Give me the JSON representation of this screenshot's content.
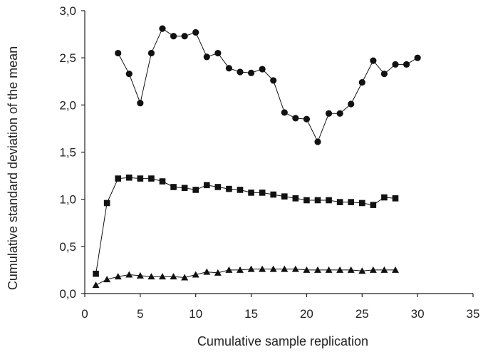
{
  "chart_data": {
    "type": "scatter",
    "xlabel": "Cumulative sample replication",
    "ylabel": "Cumulative standard deviation of the mean",
    "xlim": [
      0,
      35
    ],
    "ylim": [
      0,
      3.0
    ],
    "x_ticks": [
      "0",
      "5",
      "10",
      "15",
      "20",
      "25",
      "30",
      "35"
    ],
    "y_ticks": [
      "0,0",
      "0,5",
      "1,0",
      "1,5",
      "2,0",
      "2,5",
      "3,0"
    ],
    "grid": false,
    "legend": "none",
    "series": [
      {
        "marker": "circle",
        "color": "#111111",
        "x": [
          3,
          4,
          5,
          6,
          7,
          8,
          9,
          10,
          11,
          12,
          13,
          14,
          15,
          16,
          17,
          18,
          19,
          20,
          21,
          22,
          23,
          24,
          25,
          26,
          27,
          28,
          29,
          30
        ],
        "values": [
          2.55,
          2.33,
          2.02,
          2.55,
          2.81,
          2.73,
          2.73,
          2.77,
          2.51,
          2.55,
          2.39,
          2.35,
          2.34,
          2.38,
          2.26,
          1.92,
          1.86,
          1.85,
          1.61,
          1.91,
          1.91,
          2.01,
          2.24,
          2.47,
          2.33,
          2.43,
          2.43,
          2.5
        ]
      },
      {
        "marker": "square",
        "color": "#111111",
        "x": [
          1,
          2,
          3,
          4,
          5,
          6,
          7,
          8,
          9,
          10,
          11,
          12,
          13,
          14,
          15,
          16,
          17,
          18,
          19,
          20,
          21,
          22,
          23,
          24,
          25,
          26,
          27,
          28
        ],
        "values": [
          0.21,
          0.96,
          1.22,
          1.23,
          1.22,
          1.22,
          1.19,
          1.13,
          1.12,
          1.1,
          1.15,
          1.13,
          1.11,
          1.1,
          1.07,
          1.07,
          1.05,
          1.03,
          1.01,
          0.99,
          0.99,
          0.99,
          0.97,
          0.97,
          0.96,
          0.94,
          1.02,
          1.01
        ]
      },
      {
        "marker": "triangle",
        "color": "#111111",
        "x": [
          1,
          2,
          3,
          4,
          5,
          6,
          7,
          8,
          9,
          10,
          11,
          12,
          13,
          14,
          15,
          16,
          17,
          18,
          19,
          20,
          21,
          22,
          23,
          24,
          25,
          26,
          27,
          28
        ],
        "values": [
          0.09,
          0.15,
          0.18,
          0.2,
          0.19,
          0.18,
          0.18,
          0.18,
          0.17,
          0.2,
          0.23,
          0.22,
          0.25,
          0.25,
          0.26,
          0.26,
          0.26,
          0.26,
          0.26,
          0.25,
          0.25,
          0.25,
          0.25,
          0.25,
          0.24,
          0.25,
          0.25,
          0.25
        ]
      }
    ]
  }
}
